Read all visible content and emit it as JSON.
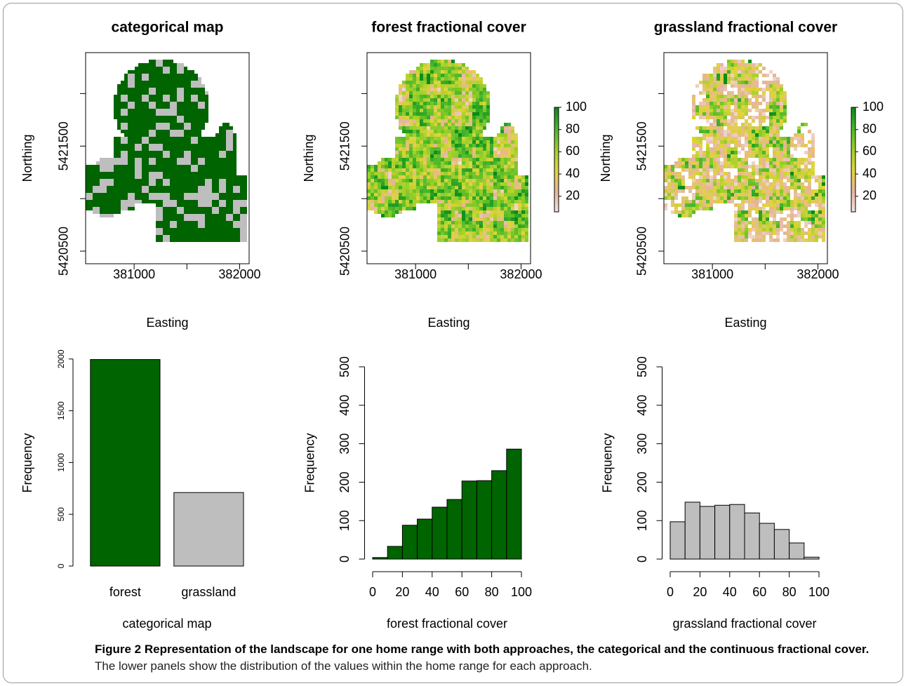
{
  "chart_data": [
    {
      "type": "raster",
      "title": "categorical map",
      "xlabel": "Easting",
      "ylabel": "Northing",
      "xlim": [
        380540,
        382090
      ],
      "ylim": [
        5420380,
        5422390
      ],
      "xticks": [
        381000,
        {
          "value": 381500,
          "label": null
        },
        382000
      ],
      "yticks": [
        5420500,
        {
          "value": 5421000,
          "label": null
        },
        5421500,
        {
          "value": 5422000,
          "label": null
        }
      ],
      "colors": [
        "#006400",
        "#bebebe"
      ]
    },
    {
      "type": "raster",
      "title": "forest fractional cover",
      "xlabel": "Easting",
      "ylabel": "Northing",
      "xlim": [
        380540,
        382090
      ],
      "ylim": [
        5420380,
        5422390
      ],
      "xticks": [
        381000,
        {
          "value": 381500,
          "label": null
        },
        382000
      ],
      "yticks": [
        5420500,
        {
          "value": 5421000,
          "label": null
        },
        5421500,
        {
          "value": 5422000,
          "label": null
        }
      ],
      "colorbar": {
        "lim": [
          6,
          100
        ],
        "ticks": [
          20,
          40,
          60,
          80,
          100
        ],
        "colors": [
          "#f4e4e0",
          "#e6b49a",
          "#e2d43c",
          "#9fd02a",
          "#49b82a",
          "#0a8a1a"
        ]
      }
    },
    {
      "type": "raster",
      "title": "grassland fractional cover",
      "xlabel": "Easting",
      "ylabel": "Northing",
      "xlim": [
        380540,
        382090
      ],
      "ylim": [
        5420380,
        5422390
      ],
      "xticks": [
        381000,
        {
          "value": 381500,
          "label": null
        },
        382000
      ],
      "yticks": [
        5420500,
        {
          "value": 5421000,
          "label": null
        },
        5421500,
        {
          "value": 5422000,
          "label": null
        }
      ],
      "colorbar": {
        "lim": [
          6,
          100
        ],
        "ticks": [
          20,
          40,
          60,
          80,
          100
        ],
        "colors": [
          "#f4e4e0",
          "#e6b49a",
          "#e2d43c",
          "#9fd02a",
          "#49b82a",
          "#0a8a1a"
        ]
      }
    },
    {
      "type": "bar",
      "xlabel": "categorical map",
      "ylabel": "Frequency",
      "categories": [
        "forest",
        "grassland"
      ],
      "values": [
        1995,
        710
      ],
      "colors": [
        "#006400",
        "#bebebe"
      ],
      "ylim": [
        0,
        2080
      ],
      "yticks": [
        0,
        500,
        1000,
        1500,
        2000
      ]
    },
    {
      "type": "histogram",
      "xlabel": "forest fractional cover",
      "ylabel": "Frequency",
      "bins": [
        0,
        10,
        20,
        30,
        40,
        50,
        60,
        70,
        80,
        90,
        100
      ],
      "values": [
        4,
        33,
        88,
        104,
        135,
        155,
        203,
        204,
        230,
        286
      ],
      "color": "#006400",
      "xlim": [
        -4,
        104
      ],
      "xticks": [
        0,
        20,
        40,
        60,
        80,
        100
      ],
      "ylim": [
        -20,
        520
      ],
      "yticks": [
        0,
        100,
        200,
        300,
        400,
        500
      ]
    },
    {
      "type": "histogram",
      "xlabel": "grassland fractional cover",
      "ylabel": "Frequency",
      "bins": [
        0,
        10,
        20,
        30,
        40,
        50,
        60,
        70,
        80,
        90,
        100
      ],
      "values": [
        97,
        148,
        137,
        140,
        142,
        120,
        93,
        77,
        42,
        5
      ],
      "color": "#bebebe",
      "xlim": [
        -4,
        104
      ],
      "xticks": [
        0,
        20,
        40,
        60,
        80,
        100
      ],
      "ylim": [
        -20,
        520
      ],
      "yticks": [
        0,
        100,
        200,
        300,
        400,
        500
      ]
    }
  ],
  "caption": {
    "title": "Figure 2 Representation of the landscape for one home range with both approaches, the categorical and the continuous fractional cover.",
    "text": "The lower panels show the distribution of the values within the home range for each approach."
  }
}
